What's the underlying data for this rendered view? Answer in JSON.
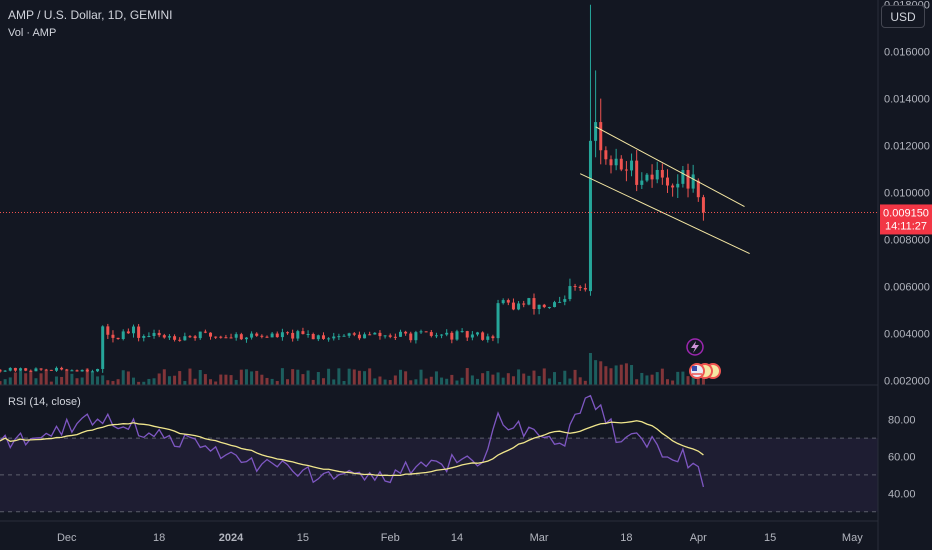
{
  "header": {
    "title": "AMP / U.S. Dollar, 1D, GEMINI",
    "volume_label": "Vol · AMP"
  },
  "currency_button": "USD",
  "rsi_label": "RSI (14, close)",
  "price_axis": {
    "ticks": [
      "0.018000",
      "0.016000",
      "0.014000",
      "0.012000",
      "0.010000",
      "0.008000",
      "0.006000",
      "0.004000",
      "0.002000"
    ]
  },
  "rsi_axis": {
    "ticks": [
      "80.00",
      "60.00",
      "40.00"
    ]
  },
  "time_axis": {
    "ticks": [
      "Dec",
      "18",
      "2024",
      "15",
      "Feb",
      "14",
      "Mar",
      "18",
      "Apr",
      "15",
      "May"
    ]
  },
  "last_price": {
    "value": "0.009150",
    "countdown": "14:11:27"
  },
  "colors": {
    "background": "#131722",
    "up": "#26a69a",
    "down": "#ef5350",
    "rsi_line": "#7e57c2",
    "rsi_ma": "#f0e68c",
    "channel": "#f5e7a3",
    "last_price_badge": "#f23645",
    "event_icon": "#9c27b0"
  },
  "icons": [
    "lightning-event-icon",
    "us-flag-event-icon"
  ],
  "chart_data": {
    "type": "candlestick",
    "symbol": "AMP / U.S. Dollar",
    "interval": "1D",
    "exchange": "GEMINI",
    "ylim": [
      0.0018,
      0.0182
    ],
    "x_range": [
      "2023-11-17",
      "2024-05-06"
    ],
    "segments": [
      {
        "from": "2023-11-17",
        "to": "2023-12-06",
        "level": 0.00245,
        "noise": 8e-05
      },
      {
        "from": "2023-12-07",
        "to": "2023-12-13",
        "level": 0.004,
        "noise": 0.0003
      },
      {
        "from": "2023-12-14",
        "to": "2024-02-21",
        "level": 0.0039,
        "noise": 0.0002
      },
      {
        "from": "2024-02-22",
        "to": "2024-03-06",
        "level": 0.0052,
        "noise": 0.00035
      },
      {
        "from": "2024-03-07",
        "to": "2024-03-10",
        "level": 0.0058,
        "noise": 0.0004
      }
    ],
    "notable_candles": [
      {
        "date": "2024-03-11",
        "open": 0.0058,
        "high": 0.018,
        "low": 0.0056,
        "close": 0.0122
      },
      {
        "date": "2024-03-12",
        "open": 0.0122,
        "high": 0.0152,
        "low": 0.0115,
        "close": 0.013
      },
      {
        "date": "2024-03-13",
        "open": 0.013,
        "high": 0.014,
        "low": 0.0112,
        "close": 0.0118
      },
      {
        "date": "2024-04-01",
        "open": 0.0105,
        "high": 0.0106,
        "low": 0.0096,
        "close": 0.0098
      },
      {
        "date": "2024-04-02",
        "open": 0.0098,
        "high": 0.0099,
        "low": 0.0088,
        "close": 0.00915
      }
    ],
    "channel": {
      "upper": [
        [
          "2024-03-12",
          0.0128
        ],
        [
          "2024-04-10",
          0.0094
        ]
      ],
      "lower": [
        [
          "2024-03-09",
          0.0108
        ],
        [
          "2024-04-11",
          0.0074
        ]
      ]
    },
    "rsi": {
      "period": 14,
      "ylim": [
        25,
        95
      ],
      "bands": [
        70,
        50,
        30
      ],
      "key_points": [
        [
          "2023-11-17",
          66
        ],
        [
          "2023-12-07",
          82
        ],
        [
          "2023-12-20",
          70
        ],
        [
          "2024-01-08",
          55
        ],
        [
          "2024-01-25",
          47
        ],
        [
          "2024-02-20",
          60
        ],
        [
          "2024-02-22",
          82
        ],
        [
          "2024-03-05",
          66
        ],
        [
          "2024-03-11",
          91
        ],
        [
          "2024-03-16",
          72
        ],
        [
          "2024-03-28",
          62
        ],
        [
          "2024-04-02",
          48
        ]
      ]
    },
    "volume": {
      "label": "Vol · AMP",
      "spike_date": "2024-03-11"
    }
  }
}
